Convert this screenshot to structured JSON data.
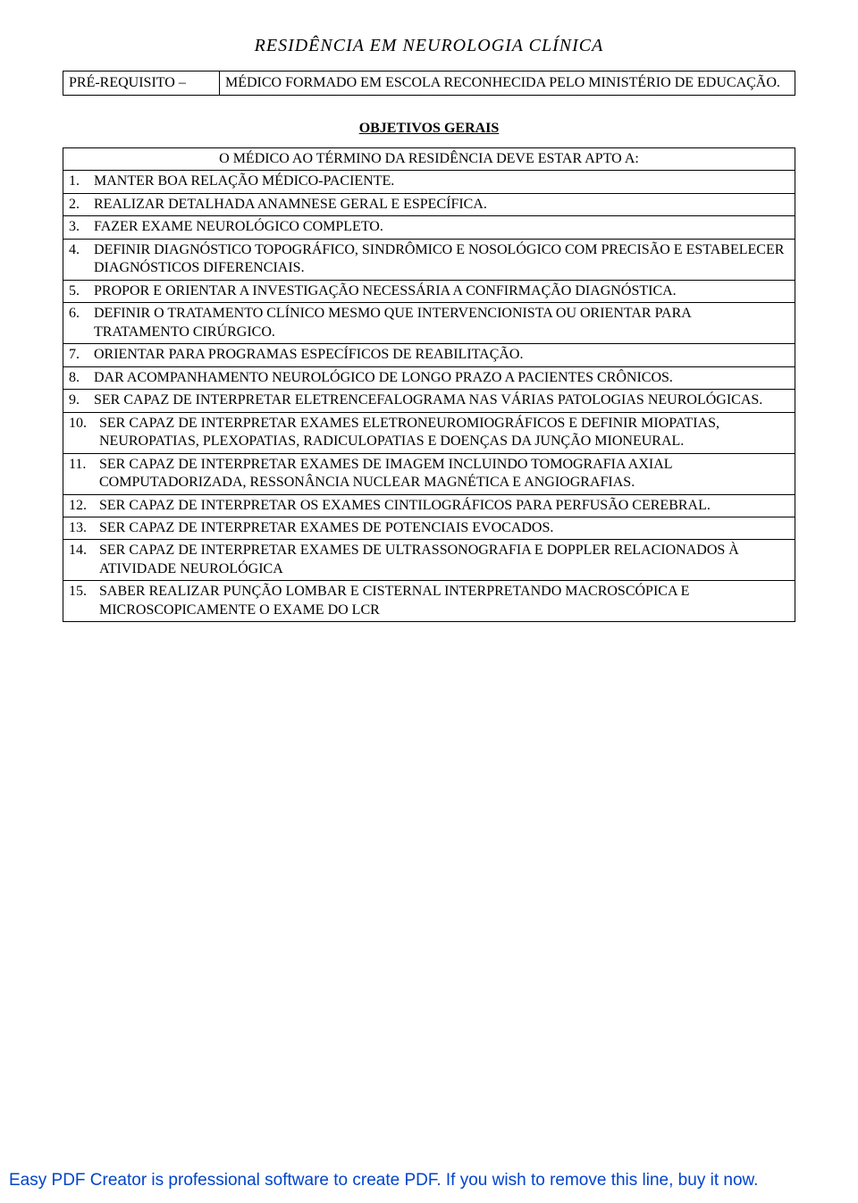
{
  "title": "RESIDÊNCIA EM NEUROLOGIA CLÍNICA",
  "prereq": {
    "label": "PRÉ-REQUISITO –",
    "text": "MÉDICO FORMADO EM ESCOLA RECONHECIDA PELO MINISTÉRIO DE EDUCAÇÃO."
  },
  "section_heading": "OBJETIVOS GERAIS",
  "intro_line": "O MÉDICO AO TÉRMINO DA RESIDÊNCIA DEVE ESTAR APTO A:",
  "objectives": [
    {
      "n": "1.",
      "t": "MANTER BOA RELAÇÃO MÉDICO-PACIENTE."
    },
    {
      "n": "2.",
      "t": "REALIZAR DETALHADA ANAMNESE GERAL E ESPECÍFICA."
    },
    {
      "n": "3.",
      "t": "FAZER EXAME NEUROLÓGICO COMPLETO."
    },
    {
      "n": "4.",
      "t": "DEFINIR DIAGNÓSTICO TOPOGRÁFICO, SINDRÔMICO E NOSOLÓGICO COM PRECISÃO E ESTABELECER DIAGNÓSTICOS DIFERENCIAIS."
    },
    {
      "n": "5.",
      "t": "PROPOR E ORIENTAR A INVESTIGAÇÃO NECESSÁRIA A CONFIRMAÇÃO DIAGNÓSTICA."
    },
    {
      "n": "6.",
      "t": "DEFINIR O TRATAMENTO CLÍNICO MESMO QUE INTERVENCIONISTA OU ORIENTAR PARA TRATAMENTO CIRÚRGICO."
    },
    {
      "n": "7.",
      "t": "ORIENTAR PARA PROGRAMAS ESPECÍFICOS DE REABILITAÇÃO."
    },
    {
      "n": "8.",
      "t": "DAR ACOMPANHAMENTO NEUROLÓGICO DE LONGO PRAZO A PACIENTES CRÔNICOS."
    },
    {
      "n": "9.",
      "t": "SER CAPAZ DE INTERPRETAR ELETRENCEFALOGRAMA NAS VÁRIAS PATOLOGIAS NEUROLÓGICAS."
    },
    {
      "n": "10.",
      "t": "SER CAPAZ DE INTERPRETAR EXAMES ELETRONEUROMIOGRÁFICOS E DEFINIR MIOPATIAS, NEUROPATIAS, PLEXOPATIAS, RADICULOPATIAS E  DOENÇAS DA JUNÇÃO MIONEURAL."
    },
    {
      "n": "11.",
      "t": "SER CAPAZ DE INTERPRETAR EXAMES DE IMAGEM INCLUINDO TOMOGRAFIA AXIAL COMPUTADORIZADA, RESSONÂNCIA NUCLEAR MAGNÉTICA E ANGIOGRAFIAS."
    },
    {
      "n": "12.",
      "t": "SER CAPAZ DE INTERPRETAR OS EXAMES CINTILOGRÁFICOS PARA PERFUSÃO CEREBRAL."
    },
    {
      "n": "13.",
      "t": "SER CAPAZ DE INTERPRETAR EXAMES DE POTENCIAIS EVOCADOS."
    },
    {
      "n": "14.",
      "t": "SER CAPAZ DE INTERPRETAR EXAMES DE ULTRASSONOGRAFIA E DOPPLER RELACIONADOS À ATIVIDADE NEUROLÓGICA"
    },
    {
      "n": "15.",
      "t": "SABER REALIZAR PUNÇÃO LOMBAR E CISTERNAL INTERPRETANDO MACROSCÓPICA E MICROSCOPICAMENTE O EXAME DO LCR"
    }
  ],
  "footer": "Easy PDF Creator is professional software to create PDF. If you wish to remove this line, buy it now."
}
